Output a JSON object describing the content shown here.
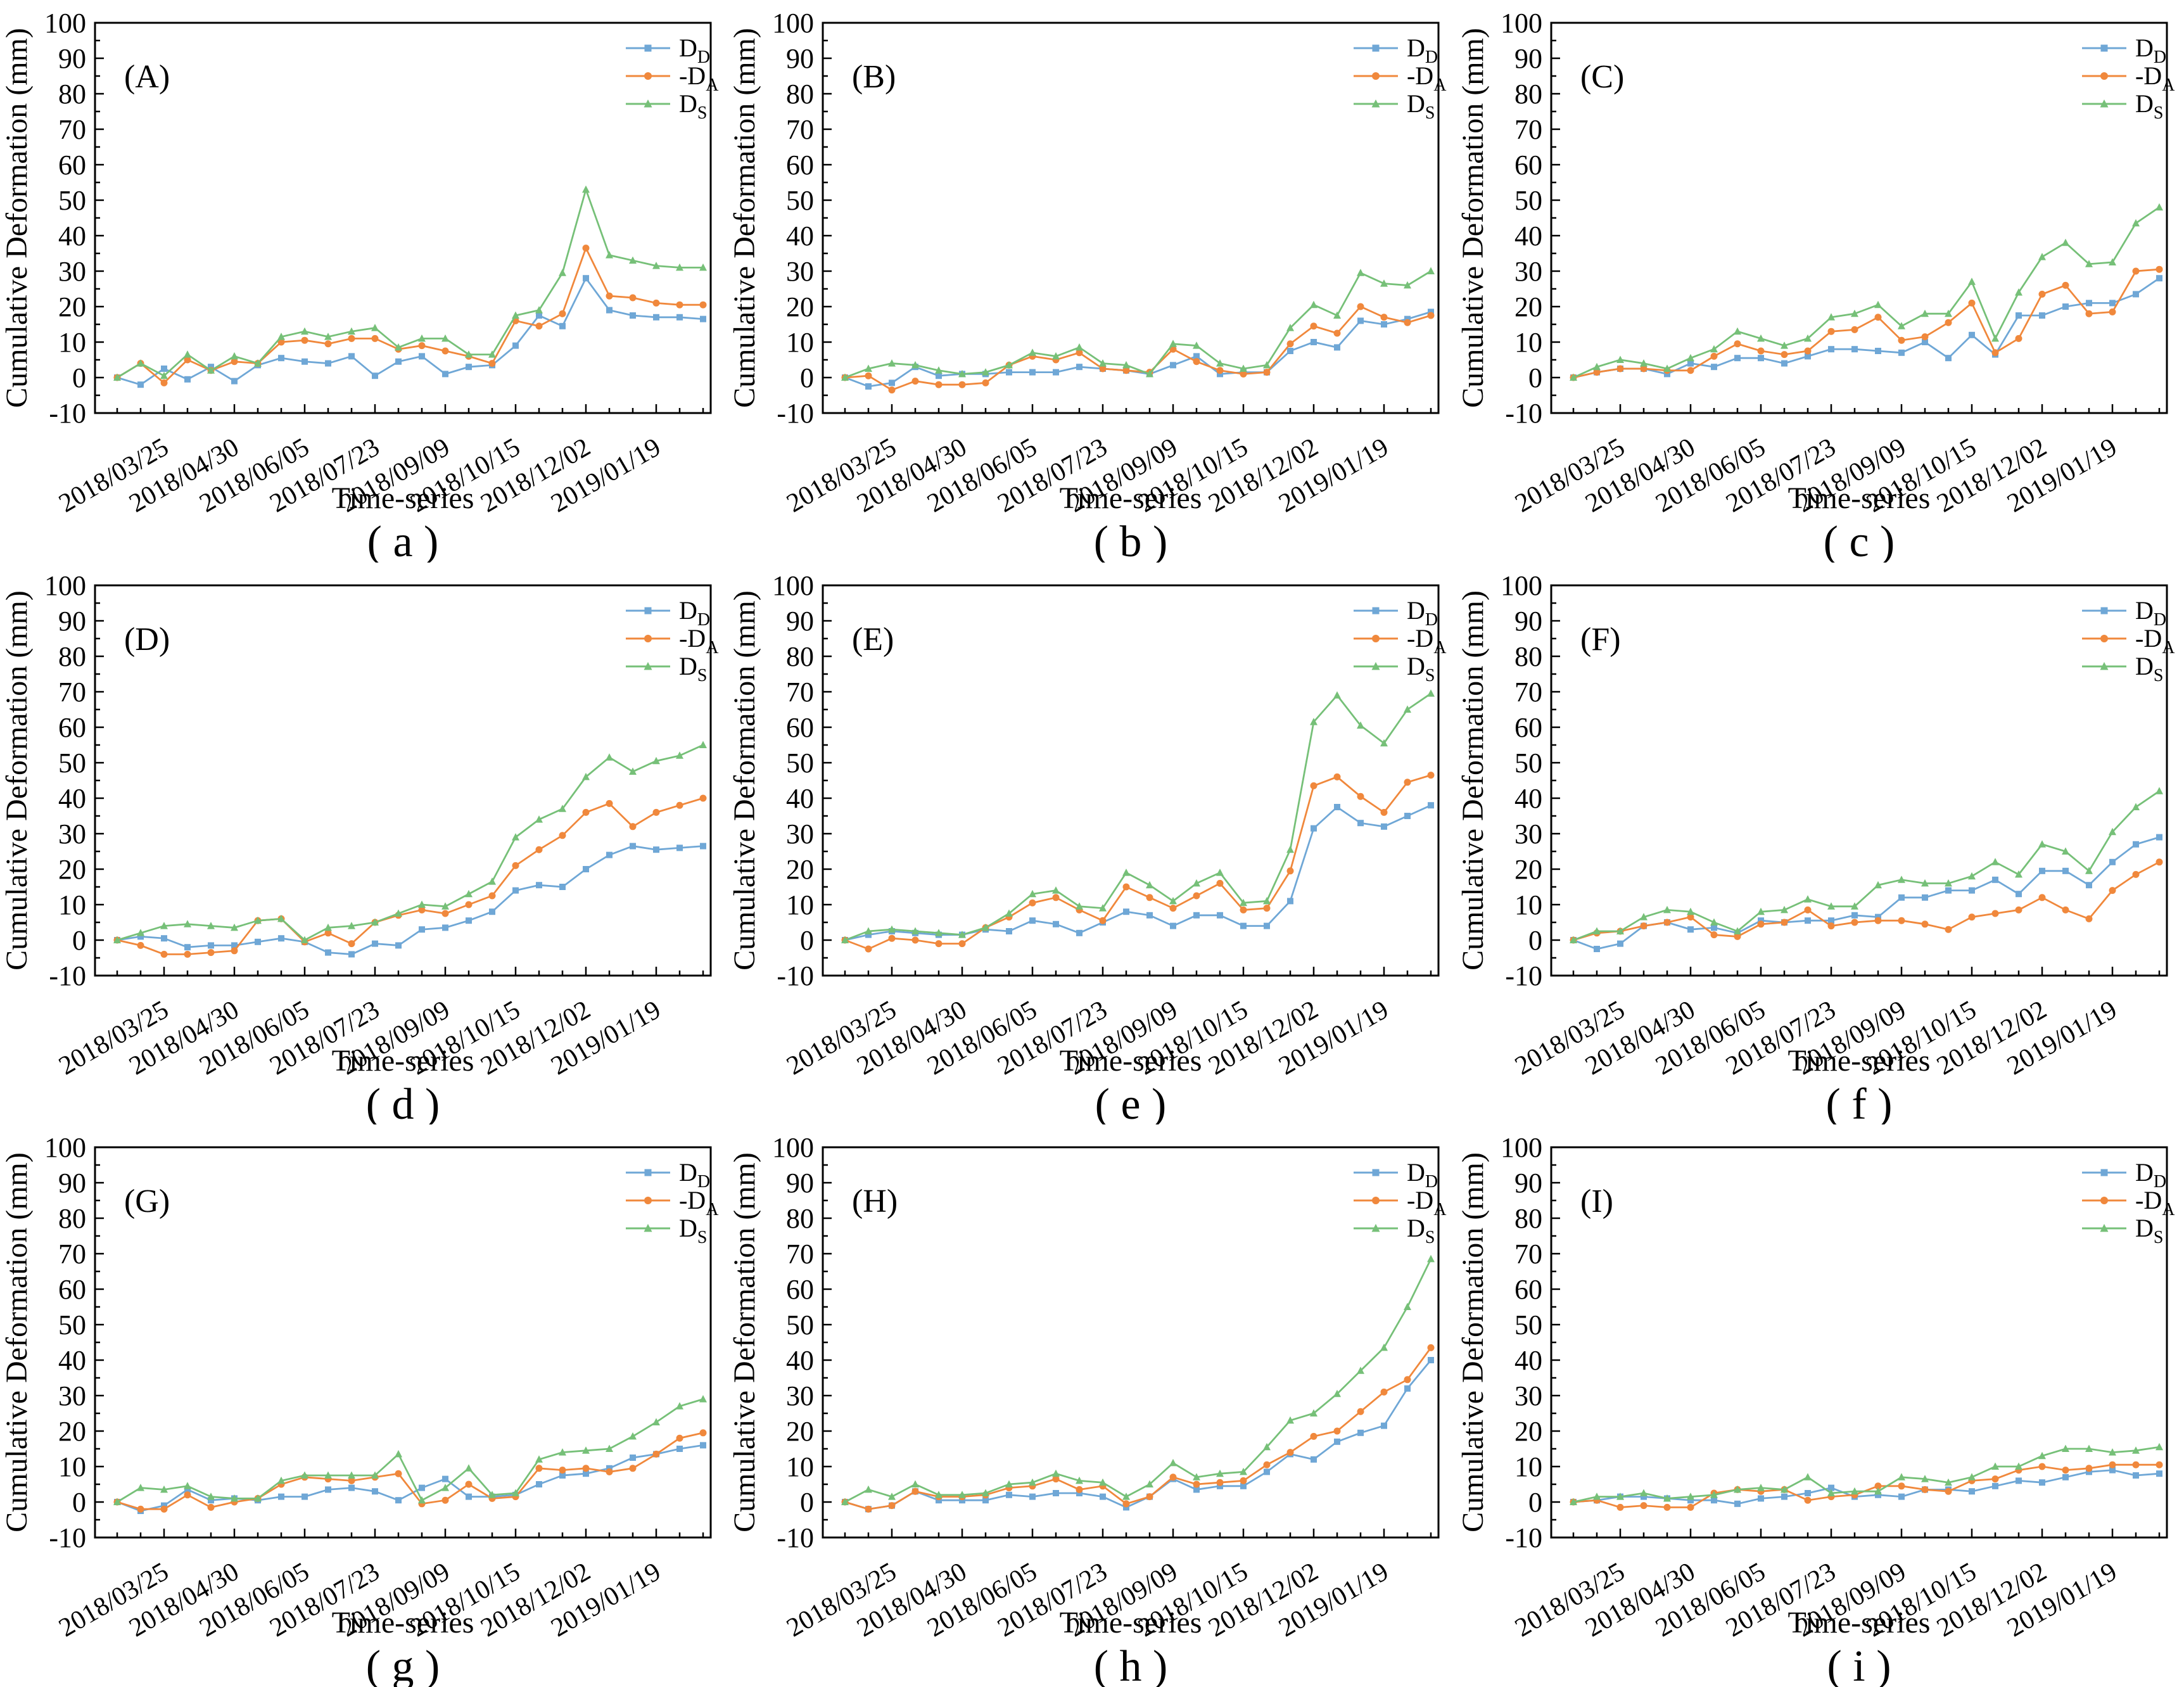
{
  "figure": {
    "ylabel": "Cumulative Deformation (mm)",
    "xlabel": "Time-series",
    "background": "#ffffff",
    "axis_color": "#000000"
  },
  "axes": {
    "ylim": [
      -10,
      100
    ],
    "ytick_step": 10,
    "ytick_minor_step": 5,
    "n_points": 26,
    "x_tick_labels": [
      "2018/03/25",
      "2018/04/30",
      "2018/06/05",
      "2018/07/23",
      "2018/09/09",
      "2018/10/15",
      "2018/12/02",
      "2019/01/19"
    ],
    "x_tick_indices": [
      2,
      5,
      8,
      11,
      14,
      17,
      20,
      23
    ]
  },
  "legend": {
    "entries": [
      {
        "series": "DD",
        "label": "D",
        "subscript": "D",
        "marker": "square",
        "color": "#6fa7d6"
      },
      {
        "series": "DA",
        "label": "-D",
        "subscript": "A",
        "marker": "circle",
        "color": "#f0883c"
      },
      {
        "series": "DS",
        "label": "D",
        "subscript": "S",
        "marker": "triangle",
        "color": "#76c078"
      }
    ]
  },
  "chart_data": [
    {
      "type": "line",
      "panel_label": "(A)",
      "caption": "( a )",
      "series": [
        {
          "name": "DD",
          "values": [
            0,
            -2,
            2.5,
            -0.5,
            3,
            -1,
            3.5,
            5.5,
            4.5,
            4,
            6,
            0.5,
            4.5,
            6,
            1,
            3,
            3.5,
            9,
            17.5,
            14.5,
            28,
            19,
            17.5,
            17,
            17,
            16.5
          ]
        },
        {
          "name": "DA",
          "values": [
            0,
            4,
            -1.5,
            5,
            2,
            4.5,
            4,
            10,
            10.5,
            9.5,
            11,
            11,
            8,
            9,
            7.5,
            6,
            4,
            16,
            14.5,
            18,
            36.5,
            23,
            22.5,
            21,
            20.5,
            20.5
          ]
        },
        {
          "name": "DS",
          "values": [
            0,
            4,
            0.5,
            6.5,
            2,
            6,
            4,
            11.5,
            13,
            11.5,
            13,
            14,
            8.5,
            11,
            11,
            6.5,
            6.5,
            17.5,
            19,
            29.5,
            53,
            34.5,
            33,
            31.5,
            31,
            31
          ]
        }
      ]
    },
    {
      "type": "line",
      "panel_label": "(B)",
      "caption": "( b )",
      "series": [
        {
          "name": "DD",
          "values": [
            0,
            -2.5,
            -1.5,
            3,
            0.5,
            1,
            1,
            1.5,
            1.5,
            1.5,
            3,
            2.5,
            2,
            1,
            3.5,
            6,
            1,
            1.5,
            1.5,
            7.5,
            10,
            8.5,
            16,
            15,
            16.5,
            18.5
          ]
        },
        {
          "name": "DA",
          "values": [
            0,
            0.5,
            -3.5,
            -1,
            -2,
            -2,
            -1.5,
            3.5,
            6,
            5,
            7,
            2.5,
            2,
            1.5,
            8,
            4.5,
            2,
            1,
            1.5,
            9.5,
            14.5,
            12.5,
            20,
            17,
            15.5,
            17.5
          ]
        },
        {
          "name": "DS",
          "values": [
            0,
            2.5,
            4,
            3.5,
            2,
            1,
            1.5,
            3.5,
            7,
            6,
            8.5,
            4,
            3.5,
            1,
            9.5,
            9,
            4,
            2.5,
            3.5,
            14,
            20.5,
            17.5,
            29.5,
            26.5,
            26,
            30
          ]
        }
      ]
    },
    {
      "type": "line",
      "panel_label": "(C)",
      "caption": "( c )",
      "series": [
        {
          "name": "DD",
          "values": [
            0,
            1.5,
            2.5,
            2.5,
            1,
            4,
            3,
            5.5,
            5.5,
            4,
            6,
            8,
            8,
            7.5,
            7,
            10,
            5.5,
            12,
            6.5,
            17.5,
            17.5,
            20,
            21,
            21,
            23.5,
            28
          ]
        },
        {
          "name": "DA",
          "values": [
            0,
            1.5,
            2.5,
            2.5,
            2,
            2,
            6,
            9.5,
            7.5,
            6.5,
            7.5,
            13,
            13.5,
            17,
            10.5,
            11.5,
            15.5,
            21,
            7,
            11,
            23.5,
            26,
            18,
            18.5,
            30,
            30.5
          ]
        },
        {
          "name": "DS",
          "values": [
            0,
            3,
            5,
            4,
            2.5,
            5.5,
            8,
            13,
            11,
            9,
            11,
            17,
            18,
            20.5,
            14.5,
            18,
            18,
            27,
            11,
            24,
            34,
            38,
            32,
            32.5,
            43.5,
            48
          ]
        }
      ]
    },
    {
      "type": "line",
      "panel_label": "(D)",
      "caption": "( d )",
      "series": [
        {
          "name": "DD",
          "values": [
            0,
            1,
            0.5,
            -2,
            -1.5,
            -1.5,
            -0.5,
            0.5,
            -0.5,
            -3.5,
            -4,
            -1,
            -1.5,
            3,
            3.5,
            5.5,
            8,
            14,
            15.5,
            15,
            20,
            24,
            26.5,
            25.5,
            26,
            26.5
          ]
        },
        {
          "name": "DA",
          "values": [
            0,
            -1.5,
            -4,
            -4,
            -3.5,
            -3,
            5.5,
            6,
            -0.5,
            2,
            -1,
            5,
            7,
            8.5,
            7.5,
            10,
            12.5,
            21,
            25.5,
            29.5,
            36,
            38.5,
            32,
            36,
            38,
            40
          ]
        },
        {
          "name": "DS",
          "values": [
            0,
            2,
            4,
            4.5,
            4,
            3.5,
            5.5,
            6,
            0,
            3.5,
            4,
            5,
            7.5,
            10,
            9.5,
            13,
            16.5,
            29,
            34,
            37,
            46,
            51.5,
            47.5,
            50.5,
            52,
            55
          ]
        }
      ]
    },
    {
      "type": "line",
      "panel_label": "(E)",
      "caption": "( e )",
      "series": [
        {
          "name": "DD",
          "values": [
            0,
            1.5,
            2.5,
            2,
            1.5,
            1.5,
            3,
            2.5,
            5.5,
            4.5,
            2,
            5,
            8,
            7,
            4,
            7,
            7,
            4,
            4,
            11,
            31.5,
            37.5,
            33,
            32,
            35,
            38
          ]
        },
        {
          "name": "DA",
          "values": [
            0,
            -2.5,
            0.5,
            0,
            -1,
            -1,
            3.5,
            6.5,
            10.5,
            12,
            8.5,
            5.5,
            15,
            12,
            9,
            12.5,
            16,
            8.5,
            9,
            19.5,
            43.5,
            46,
            40.5,
            36,
            44.5,
            46.5
          ]
        },
        {
          "name": "DS",
          "values": [
            0,
            2.5,
            3,
            2.5,
            2,
            1.5,
            3.5,
            7.5,
            13,
            14,
            9.5,
            9,
            19,
            15.5,
            11,
            16,
            19,
            10.5,
            11,
            25.5,
            61.5,
            69,
            60.5,
            55.5,
            65,
            69.5
          ]
        }
      ]
    },
    {
      "type": "line",
      "panel_label": "(F)",
      "caption": "( f )",
      "series": [
        {
          "name": "DD",
          "values": [
            0,
            -2.5,
            -1,
            4,
            5,
            3,
            3.5,
            2,
            5.5,
            5,
            5.5,
            5.5,
            7,
            6.5,
            12,
            12,
            14,
            14,
            17,
            13,
            19.5,
            19.5,
            15.5,
            22,
            27,
            29
          ]
        },
        {
          "name": "DA",
          "values": [
            0,
            2,
            2.5,
            4,
            5,
            6.5,
            1.5,
            1,
            4.5,
            5,
            8.5,
            4,
            5,
            5.5,
            5.5,
            4.5,
            3,
            6.5,
            7.5,
            8.5,
            12,
            8.5,
            6,
            14,
            18.5,
            22
          ]
        },
        {
          "name": "DS",
          "values": [
            0,
            2.5,
            2.5,
            6.5,
            8.5,
            8,
            5,
            2.5,
            8,
            8.5,
            11.5,
            9.5,
            9.5,
            15.5,
            17,
            16,
            16,
            18,
            22,
            18.5,
            27,
            25,
            19.5,
            30.5,
            37.5,
            42
          ]
        }
      ]
    },
    {
      "type": "line",
      "panel_label": "(G)",
      "caption": "( g )",
      "series": [
        {
          "name": "DD",
          "values": [
            0,
            -2.5,
            -1,
            3.5,
            0.5,
            1,
            0.5,
            1.5,
            1.5,
            3.5,
            4,
            3,
            0.5,
            4,
            6.5,
            1.5,
            1.5,
            2,
            5,
            7.5,
            8,
            9.5,
            12.5,
            13.5,
            15,
            16
          ]
        },
        {
          "name": "DA",
          "values": [
            0,
            -2,
            -2,
            2,
            -1.5,
            0,
            1,
            5,
            7,
            6.5,
            6,
            7,
            8,
            -0.5,
            0.5,
            5,
            1,
            1.5,
            9.5,
            9,
            9.5,
            8.5,
            9.5,
            13.5,
            18,
            19.5
          ]
        },
        {
          "name": "DS",
          "values": [
            0,
            4,
            3.5,
            4.5,
            1.5,
            1,
            1,
            6,
            7.5,
            7.5,
            7.5,
            7.5,
            13.5,
            0.5,
            4,
            9.5,
            2,
            2.5,
            12,
            14,
            14.5,
            15,
            18.5,
            22.5,
            27,
            29
          ]
        }
      ]
    },
    {
      "type": "line",
      "panel_label": "(H)",
      "caption": "( h )",
      "series": [
        {
          "name": "DD",
          "values": [
            0,
            -2,
            -1,
            3,
            0.5,
            0.5,
            0.5,
            2,
            1.5,
            2.5,
            2.5,
            1.5,
            -1.5,
            1.5,
            6.5,
            3.5,
            4.5,
            4.5,
            8.5,
            13.5,
            12,
            17,
            19.5,
            21.5,
            32,
            40
          ]
        },
        {
          "name": "DA",
          "values": [
            0,
            -2,
            -1,
            3,
            1.5,
            1.5,
            2,
            4,
            4.5,
            6.5,
            3.5,
            4.5,
            -0.5,
            1.5,
            7,
            5,
            5.5,
            6,
            10.5,
            14,
            18.5,
            20,
            25.5,
            31,
            34.5,
            43.5
          ]
        },
        {
          "name": "DS",
          "values": [
            0,
            3.5,
            1.5,
            5,
            2,
            2,
            2.5,
            5,
            5.5,
            8,
            6,
            5.5,
            1.5,
            5,
            11,
            7,
            8,
            8.5,
            15.5,
            23,
            25,
            30.5,
            37,
            43.5,
            55,
            68.5
          ]
        }
      ]
    },
    {
      "type": "line",
      "panel_label": "(I)",
      "caption": "( i )",
      "series": [
        {
          "name": "DD",
          "values": [
            0,
            0.5,
            1.5,
            1.5,
            1,
            0.5,
            0.5,
            -0.5,
            1,
            1.5,
            2.5,
            4,
            1.5,
            2,
            1.5,
            3.5,
            3.5,
            3,
            4.5,
            6,
            5.5,
            7,
            8.5,
            9,
            7.5,
            8
          ]
        },
        {
          "name": "DA",
          "values": [
            0,
            0.5,
            -1.5,
            -1,
            -1.5,
            -1.5,
            2.5,
            3.5,
            3,
            3.5,
            0.5,
            1.5,
            2,
            4.5,
            4.5,
            3.5,
            3,
            6,
            6.5,
            9,
            10,
            9,
            9.5,
            10.5,
            10.5,
            10.5
          ]
        },
        {
          "name": "DS",
          "values": [
            0,
            1.5,
            1.5,
            2.5,
            1,
            1.5,
            2,
            3.5,
            4,
            3.5,
            7,
            2.5,
            3,
            3,
            7,
            6.5,
            5.5,
            7,
            10,
            10,
            13,
            15,
            15,
            14,
            14.5,
            15.5
          ]
        }
      ]
    }
  ]
}
